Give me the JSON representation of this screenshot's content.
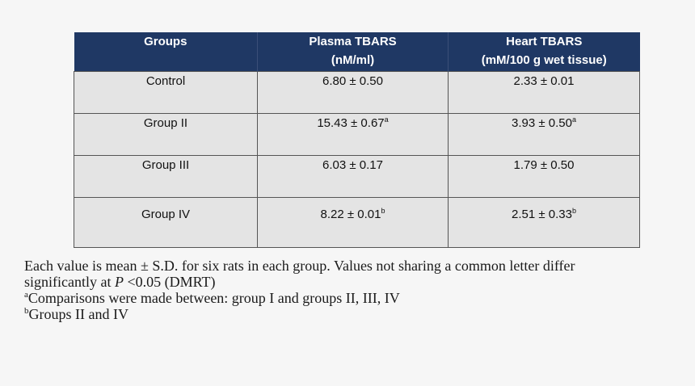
{
  "table": {
    "headers": [
      {
        "line1": "Groups",
        "line2": ""
      },
      {
        "line1": "Plasma TBARS",
        "line2": "(nM/ml)"
      },
      {
        "line1": "Heart TBARS",
        "line2": "(mM/100 g wet tissue)"
      }
    ],
    "rows": [
      {
        "group": "Control",
        "plasma": "6.80 ± 0.50",
        "plasma_sup": "",
        "heart": "2.33 ± 0.01",
        "heart_sup": ""
      },
      {
        "group": "Group II",
        "plasma": "15.43 ± 0.67",
        "plasma_sup": "a",
        "heart": "3.93 ± 0.50",
        "heart_sup": "a"
      },
      {
        "group": "Group III",
        "plasma": "6.03 ± 0.17",
        "plasma_sup": "",
        "heart": "1.79 ± 0.50",
        "heart_sup": ""
      },
      {
        "group": "Group IV",
        "plasma": "8.22 ± 0.01",
        "plasma_sup": "b",
        "heart": "2.51 ± 0.33",
        "heart_sup": "b"
      }
    ]
  },
  "notes": {
    "line1": "Each value is mean ± S.D. for six rats in each group. Values not sharing a common letter differ",
    "line2_pre": "significantly at ",
    "line2_italic": "P",
    "line2_post": " <0.05 (DMRT)",
    "footnote_a_mark": "a",
    "footnote_a_text": "Comparisons were made between: group I and groups II, III, IV",
    "footnote_b_mark": "b",
    "footnote_b_text": "Groups II and IV"
  }
}
